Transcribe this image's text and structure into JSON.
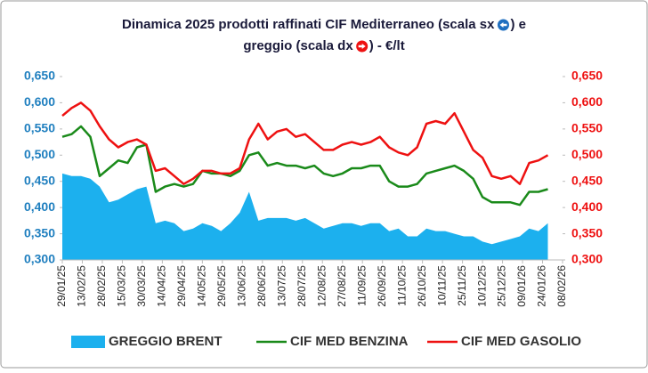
{
  "chart_data": {
    "type": "line",
    "title": [
      "Dinamica 2025 prodotti raffinati CIF Mediterraneo (scala sx",
      ") e",
      "greggio (scala dx",
      ") - €/lt"
    ],
    "x": [
      "29/01/25",
      "05/02/25",
      "12/02/25",
      "19/02/25",
      "26/02/25",
      "05/03/25",
      "12/03/25",
      "19/03/25",
      "26/03/25",
      "02/04/25",
      "09/04/25",
      "16/04/25",
      "23/04/25",
      "30/04/25",
      "07/05/25",
      "14/05/25",
      "21/05/25",
      "28/05/25",
      "04/06/25",
      "11/06/25",
      "18/06/25",
      "25/06/25",
      "02/07/25",
      "09/07/25",
      "16/07/25",
      "23/07/25",
      "30/07/25",
      "06/08/25",
      "13/08/25",
      "20/08/25",
      "27/08/25",
      "03/09/25",
      "10/09/25",
      "17/09/25",
      "24/09/25",
      "01/10/25",
      "08/10/25",
      "15/10/25",
      "22/10/25",
      "29/10/25",
      "05/11/25",
      "12/11/25",
      "19/11/25",
      "26/11/25",
      "03/12/25",
      "10/12/25",
      "17/12/25",
      "24/12/25",
      "31/12/25",
      "07/01/26",
      "14/01/26",
      "21/01/26",
      "28/01/26"
    ],
    "series": [
      {
        "name": "GREGGIO BRENT",
        "color": "#1cb0ee",
        "kind": "area",
        "axis": "y2",
        "values": [
          0.465,
          0.46,
          0.46,
          0.455,
          0.44,
          0.41,
          0.415,
          0.425,
          0.435,
          0.44,
          0.37,
          0.375,
          0.37,
          0.355,
          0.36,
          0.37,
          0.365,
          0.355,
          0.37,
          0.39,
          0.43,
          0.375,
          0.38,
          0.38,
          0.38,
          0.375,
          0.38,
          0.37,
          0.36,
          0.365,
          0.37,
          0.37,
          0.365,
          0.37,
          0.37,
          0.355,
          0.36,
          0.345,
          0.345,
          0.36,
          0.355,
          0.355,
          0.35,
          0.345,
          0.345,
          0.335,
          0.33,
          0.335,
          0.34,
          0.345,
          0.36,
          0.355,
          0.37
        ]
      },
      {
        "name": "CIF MED BENZINA",
        "color": "#1a8a1a",
        "kind": "line",
        "values": [
          0.535,
          0.54,
          0.555,
          0.535,
          0.46,
          0.475,
          0.49,
          0.485,
          0.515,
          0.52,
          0.43,
          0.44,
          0.445,
          0.44,
          0.445,
          0.47,
          0.465,
          0.465,
          0.46,
          0.47,
          0.5,
          0.505,
          0.48,
          0.485,
          0.48,
          0.48,
          0.475,
          0.48,
          0.465,
          0.46,
          0.465,
          0.475,
          0.475,
          0.48,
          0.48,
          0.45,
          0.44,
          0.44,
          0.445,
          0.465,
          0.47,
          0.475,
          0.48,
          0.47,
          0.455,
          0.42,
          0.41,
          0.41,
          0.41,
          0.405,
          0.43,
          0.43,
          0.435
        ]
      },
      {
        "name": "CIF MED GASOLIO",
        "color": "#ee1111",
        "kind": "line",
        "values": [
          0.575,
          0.59,
          0.6,
          0.585,
          0.555,
          0.53,
          0.515,
          0.525,
          0.53,
          0.52,
          0.47,
          0.475,
          0.46,
          0.445,
          0.455,
          0.47,
          0.47,
          0.465,
          0.465,
          0.475,
          0.53,
          0.56,
          0.53,
          0.545,
          0.55,
          0.535,
          0.54,
          0.525,
          0.51,
          0.51,
          0.52,
          0.525,
          0.52,
          0.525,
          0.535,
          0.515,
          0.505,
          0.5,
          0.515,
          0.56,
          0.565,
          0.56,
          0.58,
          0.545,
          0.51,
          0.495,
          0.46,
          0.455,
          0.46,
          0.445,
          0.485,
          0.49,
          0.5
        ]
      }
    ],
    "xlim": [
      "29/01/25",
      "08/02/26"
    ],
    "xticks": [
      "29/01/25",
      "13/02/25",
      "28/02/25",
      "15/03/25",
      "30/03/25",
      "14/04/25",
      "29/04/25",
      "14/05/25",
      "29/05/25",
      "13/06/25",
      "28/06/25",
      "13/07/25",
      "28/07/25",
      "12/08/25",
      "27/08/25",
      "11/09/25",
      "26/09/25",
      "11/10/25",
      "26/10/25",
      "10/11/25",
      "25/11/25",
      "10/12/25",
      "25/12/25",
      "09/01/26",
      "24/01/26",
      "08/02/26"
    ],
    "ylim": [
      0.3,
      0.65
    ],
    "yticks": [
      {
        "value": 0.3,
        "label": "0,300"
      },
      {
        "value": 0.35,
        "label": "0,350"
      },
      {
        "value": 0.4,
        "label": "0,400"
      },
      {
        "value": 0.45,
        "label": "0,450"
      },
      {
        "value": 0.5,
        "label": "0,500"
      },
      {
        "value": 0.55,
        "label": "0,550"
      },
      {
        "value": 0.6,
        "label": "0,600"
      },
      {
        "value": 0.65,
        "label": "0,650"
      }
    ],
    "y2lim": [
      0.3,
      0.65
    ],
    "y2ticks": [
      {
        "value": 0.3,
        "label": "0,300"
      },
      {
        "value": 0.35,
        "label": "0,350"
      },
      {
        "value": 0.4,
        "label": "0,400"
      },
      {
        "value": 0.45,
        "label": "0,450"
      },
      {
        "value": 0.5,
        "label": "0,500"
      },
      {
        "value": 0.55,
        "label": "0,550"
      },
      {
        "value": 0.6,
        "label": "0,600"
      },
      {
        "value": 0.65,
        "label": "0,650"
      }
    ],
    "ytick_color": "#1f7fbf",
    "y2tick_color": "#ee1111",
    "legend": "bottom"
  }
}
